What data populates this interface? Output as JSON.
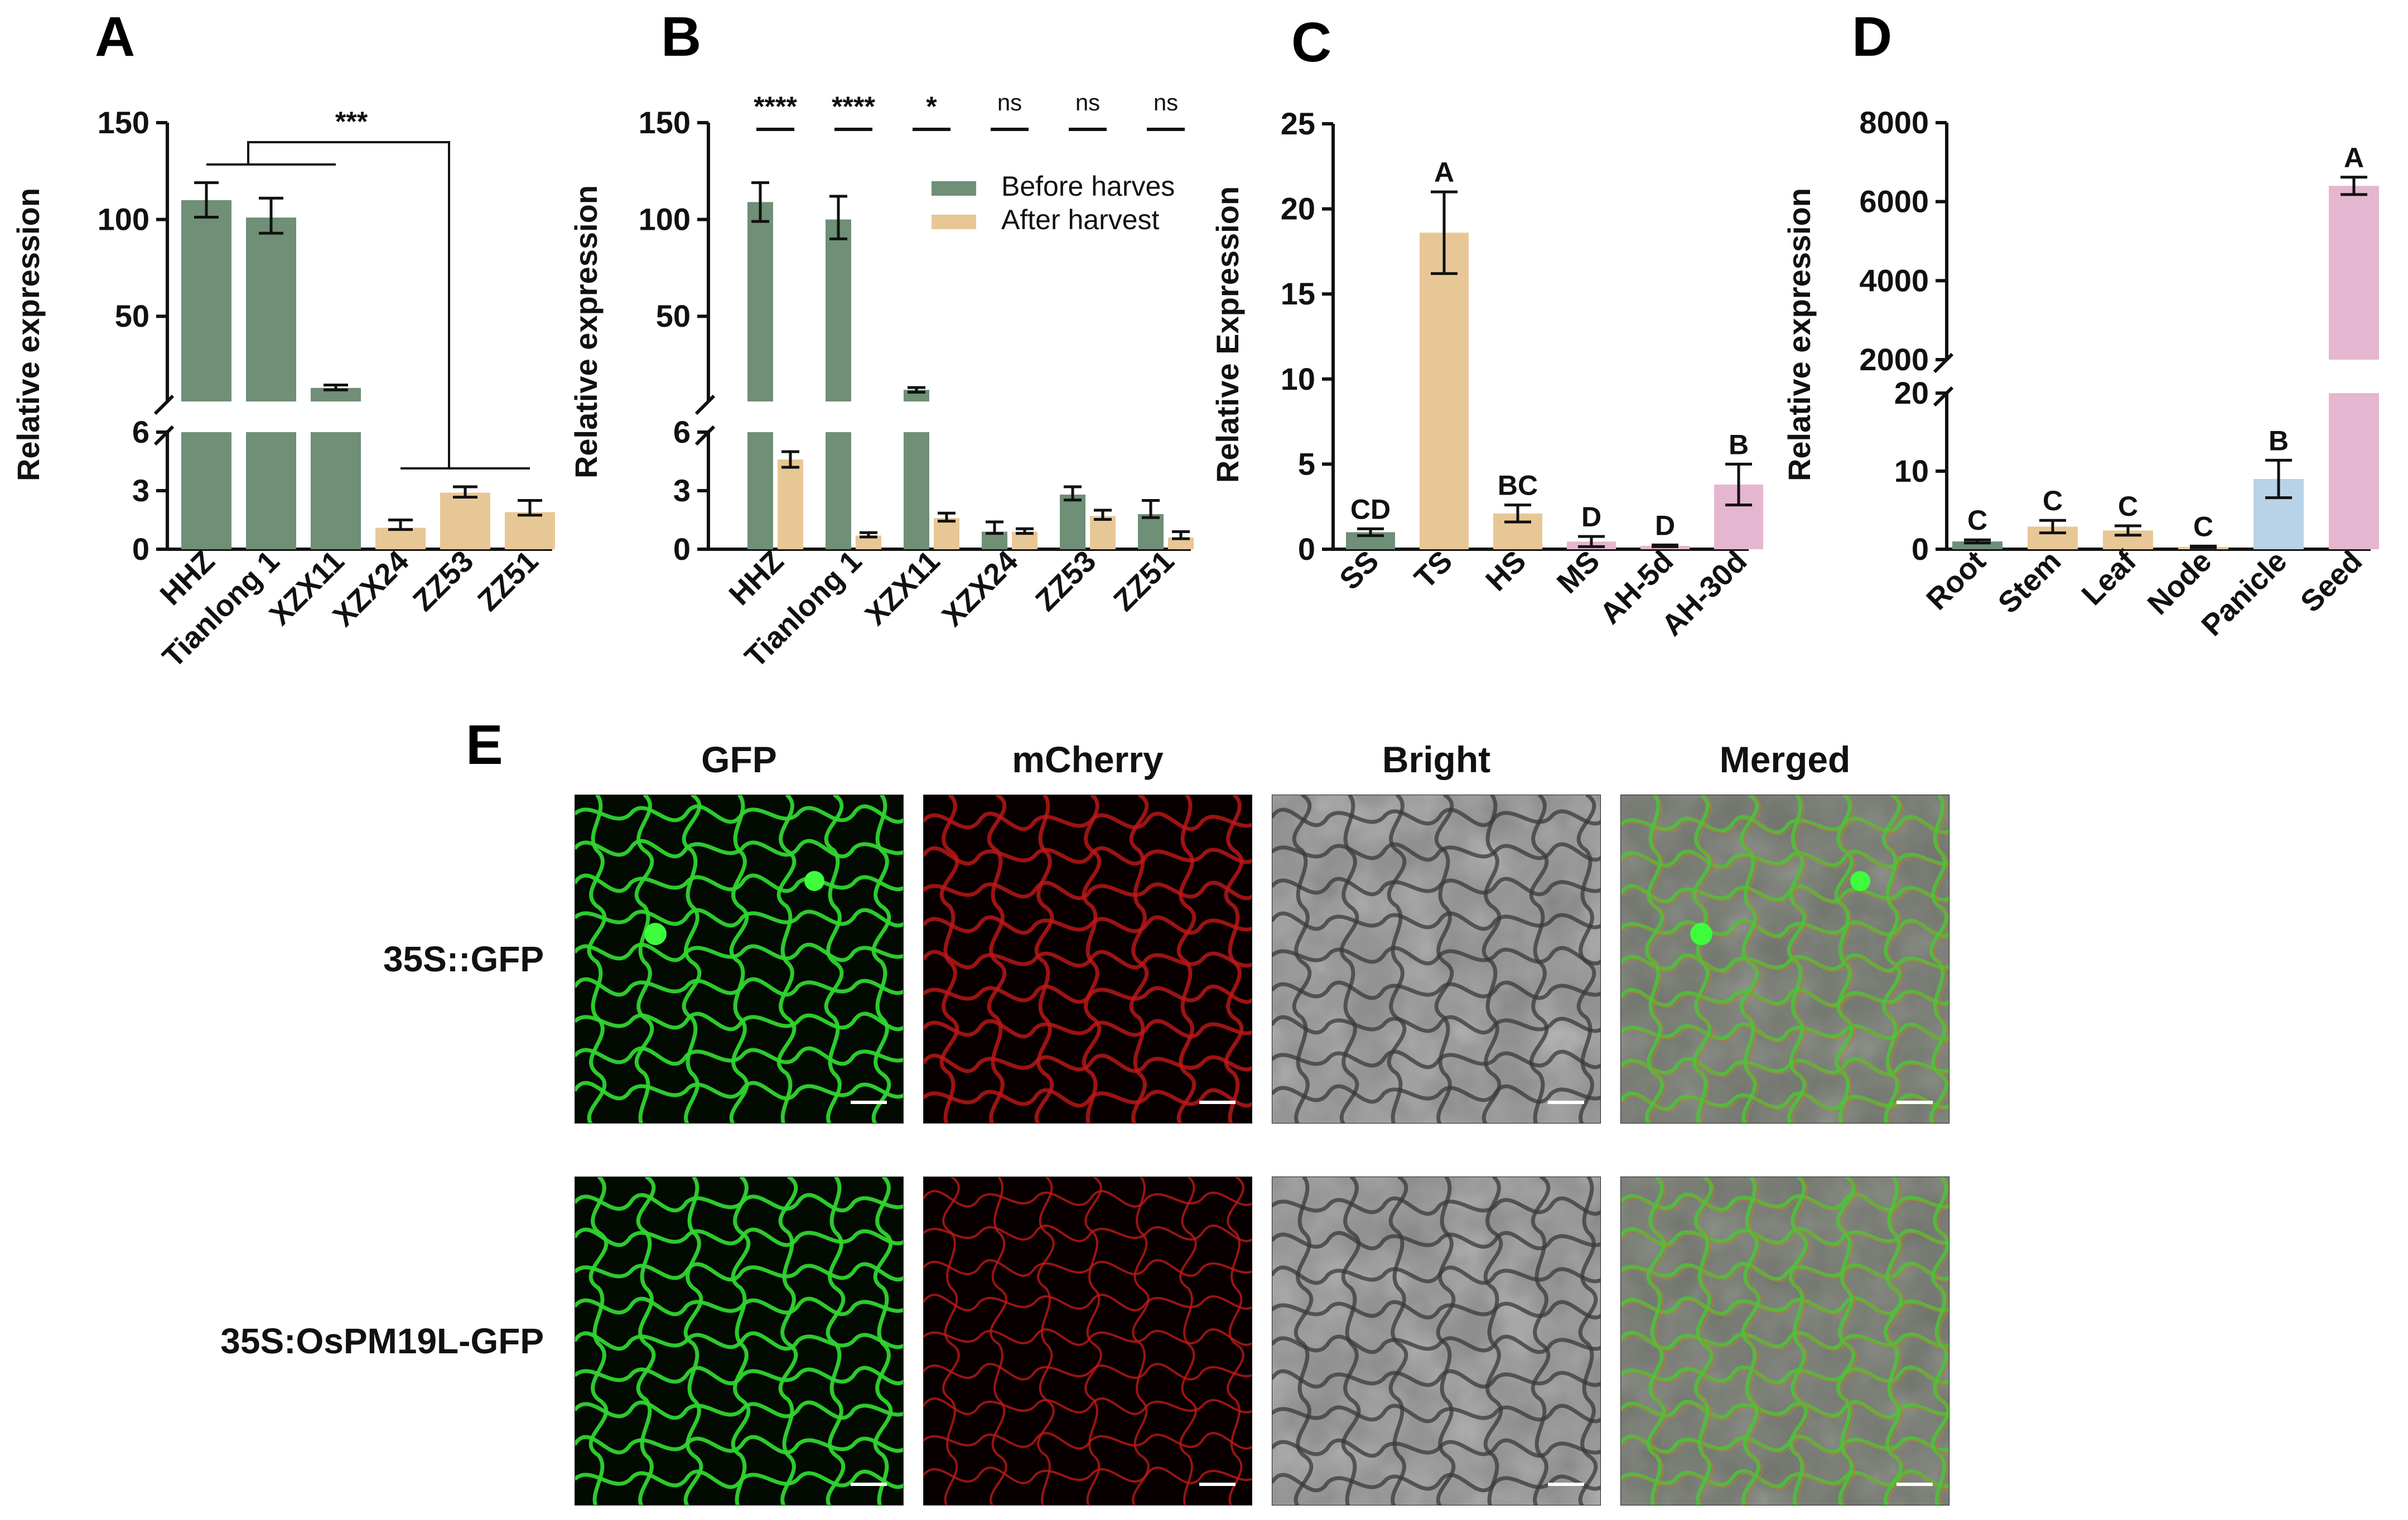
{
  "colors": {
    "green": "#6f8f76",
    "tan": "#e8c796",
    "pink": "#e5b6cf",
    "blue": "#b8d3e8"
  },
  "chart_data": [
    {
      "panel": "A",
      "type": "bar",
      "ylabel": "Relative expression",
      "categories": [
        "HHZ",
        "Tianlong 1",
        "XZX11",
        "XZX24",
        "ZZ53",
        "ZZ51"
      ],
      "values": [
        110,
        101,
        13,
        1.1,
        2.9,
        1.9
      ],
      "errors": [
        9,
        10,
        1.5,
        0.4,
        0.3,
        0.6
      ],
      "bar_colors": [
        "green",
        "green",
        "green",
        "tan",
        "tan",
        "tan"
      ],
      "broken_axis": {
        "lower": [
          0,
          6
        ],
        "upper": [
          6,
          150
        ]
      },
      "yticks_lower": [
        "0",
        "3",
        "6"
      ],
      "yticks_upper": [
        "50",
        "100",
        "150"
      ],
      "significance": "***"
    },
    {
      "panel": "B",
      "type": "bar",
      "ylabel": "Relative expression",
      "categories": [
        "HHZ",
        "Tianlong 1",
        "XZX11",
        "XZX24",
        "ZZ53",
        "ZZ51"
      ],
      "series": [
        {
          "name": "Before harves",
          "color": "green",
          "values": [
            109,
            100,
            12,
            0.9,
            2.8,
            1.8
          ],
          "errors": [
            10,
            12,
            1.2,
            0.5,
            0.4,
            0.7
          ]
        },
        {
          "name": "After harvest",
          "color": "tan",
          "values": [
            4.6,
            0.7,
            1.6,
            0.9,
            1.7,
            0.6
          ],
          "errors": [
            0.4,
            0.15,
            0.25,
            0.15,
            0.3,
            0.3
          ]
        }
      ],
      "broken_axis": {
        "lower": [
          0,
          6
        ],
        "upper": [
          6,
          150
        ]
      },
      "yticks_lower": [
        "0",
        "3",
        "6"
      ],
      "yticks_upper": [
        "50",
        "100",
        "150"
      ],
      "significance": [
        "****",
        "****",
        "*",
        "ns",
        "ns",
        "ns"
      ]
    },
    {
      "panel": "C",
      "type": "bar",
      "ylabel": "Relative Expression",
      "categories": [
        "SS",
        "TS",
        "HS",
        "MS",
        "AH-5d",
        "AH-30d"
      ],
      "values": [
        1.0,
        18.6,
        2.1,
        0.45,
        0.2,
        3.8
      ],
      "errors": [
        0.2,
        2.4,
        0.5,
        0.3,
        0.05,
        1.2
      ],
      "bar_colors": [
        "green",
        "tan",
        "tan",
        "pink",
        "pink",
        "pink"
      ],
      "ylim": [
        0,
        25
      ],
      "yticks": [
        "0",
        "5",
        "10",
        "15",
        "20",
        "25"
      ],
      "letters": [
        "CD",
        "A",
        "BC",
        "D",
        "D",
        "B"
      ]
    },
    {
      "panel": "D",
      "type": "bar",
      "ylabel": "Relative expression",
      "categories": [
        "Root",
        "Stem",
        "Leaf",
        "Node",
        "Panicle",
        "Seed"
      ],
      "values": [
        1.0,
        2.9,
        2.4,
        0.3,
        9.0,
        6400
      ],
      "errors": [
        0.2,
        0.8,
        0.6,
        0.1,
        2.4,
        220
      ],
      "bar_colors": [
        "green",
        "tan",
        "tan",
        "tan",
        "blue",
        "pink"
      ],
      "broken_axis": {
        "lower": [
          0,
          20
        ],
        "upper": [
          2000,
          8000
        ]
      },
      "yticks_lower": [
        "0",
        "10",
        "20"
      ],
      "yticks_upper": [
        "2000",
        "4000",
        "6000",
        "8000"
      ],
      "letters": [
        "C",
        "C",
        "C",
        "C",
        "B",
        "A"
      ]
    }
  ],
  "panel_e": {
    "letter": "E",
    "columns": [
      "GFP",
      "mCherry",
      "Bright",
      "Merged"
    ],
    "rows": [
      "35S::GFP",
      "35S:OsPM19L-GFP"
    ]
  },
  "panel_letters": {
    "a": "A",
    "b": "B",
    "c": "C",
    "d": "D"
  }
}
